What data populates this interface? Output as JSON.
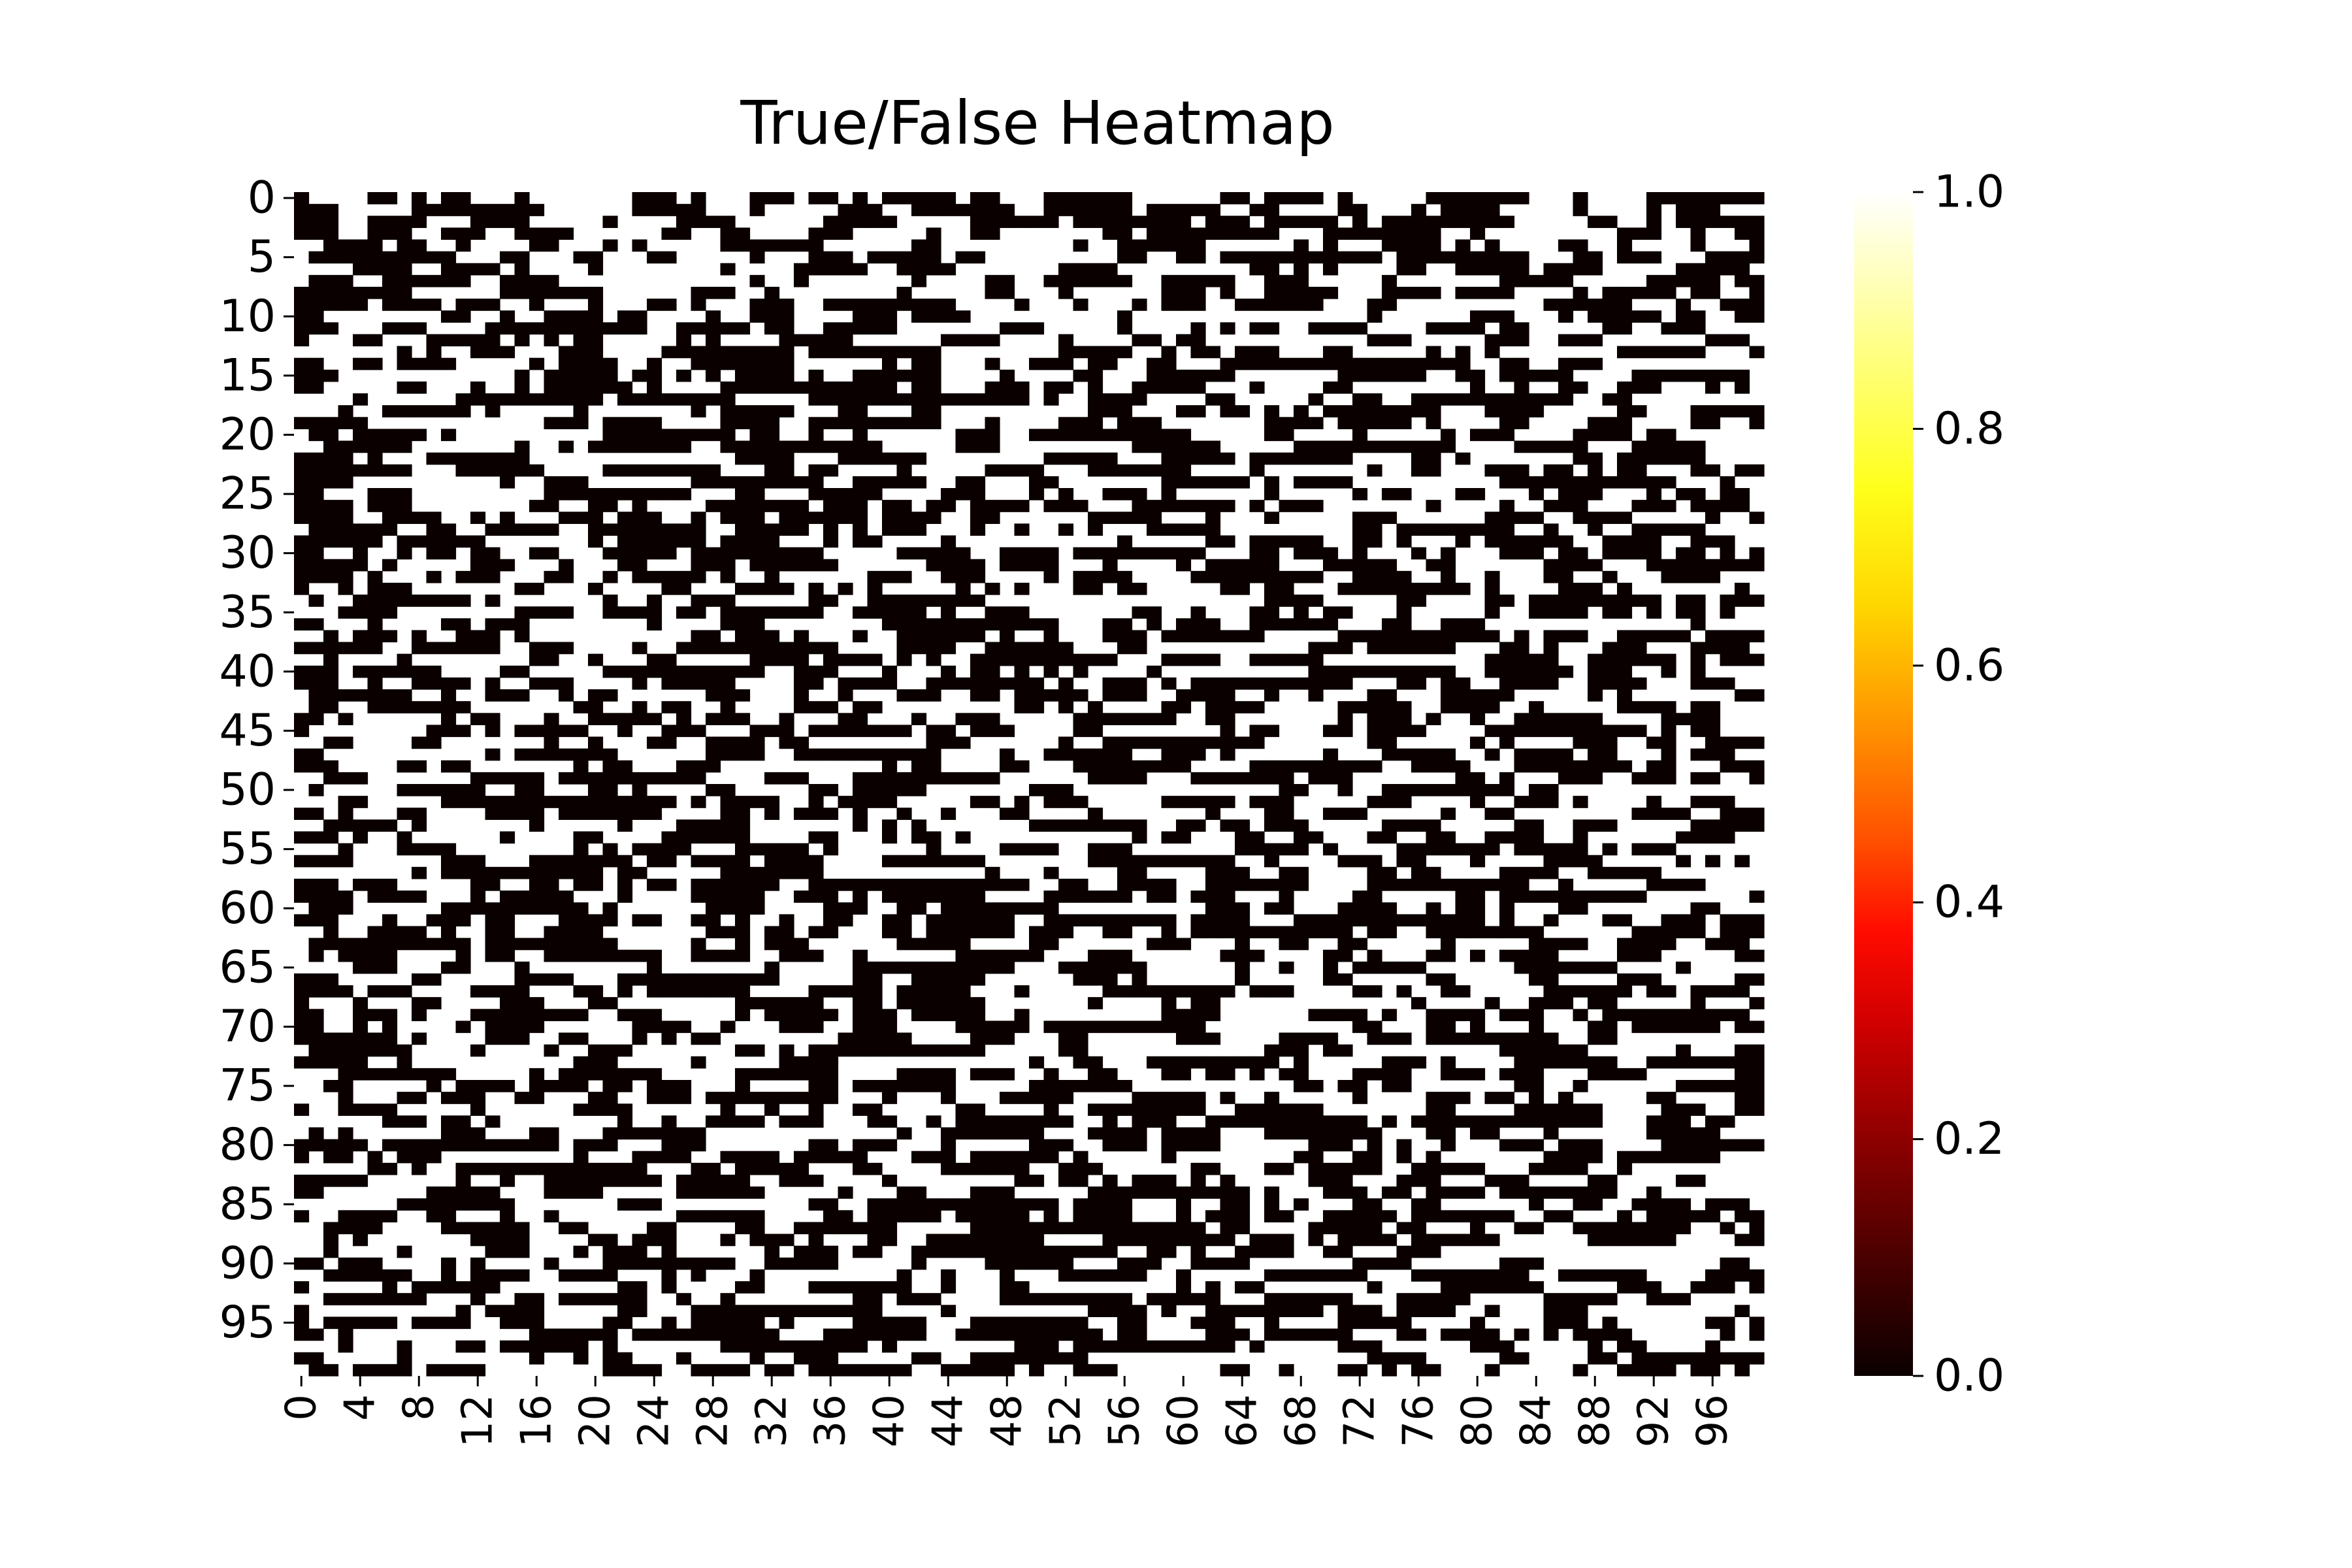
{
  "chart_data": {
    "type": "heatmap",
    "title": "True/False Heatmap",
    "xlabel": "",
    "ylabel": "",
    "rows": 100,
    "cols": 100,
    "cells_note_values": "binary 0/1 grid (False/True); individual cells not legible — visualized as random binary pattern",
    "x_tick_labels": [
      "0",
      "4",
      "8",
      "12",
      "16",
      "20",
      "24",
      "28",
      "32",
      "36",
      "40",
      "44",
      "48",
      "52",
      "56",
      "60",
      "64",
      "68",
      "72",
      "76",
      "80",
      "84",
      "88",
      "92",
      "96"
    ],
    "x_tick_step": 4,
    "y_tick_labels": [
      "0",
      "5",
      "10",
      "15",
      "20",
      "25",
      "30",
      "35",
      "40",
      "45",
      "50",
      "55",
      "60",
      "65",
      "70",
      "75",
      "80",
      "85",
      "90",
      "95"
    ],
    "y_tick_step": 5,
    "colorbar": {
      "min": 0.0,
      "max": 1.0,
      "tick_labels": [
        "0.0",
        "0.2",
        "0.4",
        "0.6",
        "0.8",
        "1.0"
      ],
      "tick_values": [
        0.0,
        0.2,
        0.4,
        0.6,
        0.8,
        1.0
      ],
      "colormap": "hot",
      "low_color": "#000000",
      "high_color": "#ffffff"
    },
    "grid": false
  }
}
